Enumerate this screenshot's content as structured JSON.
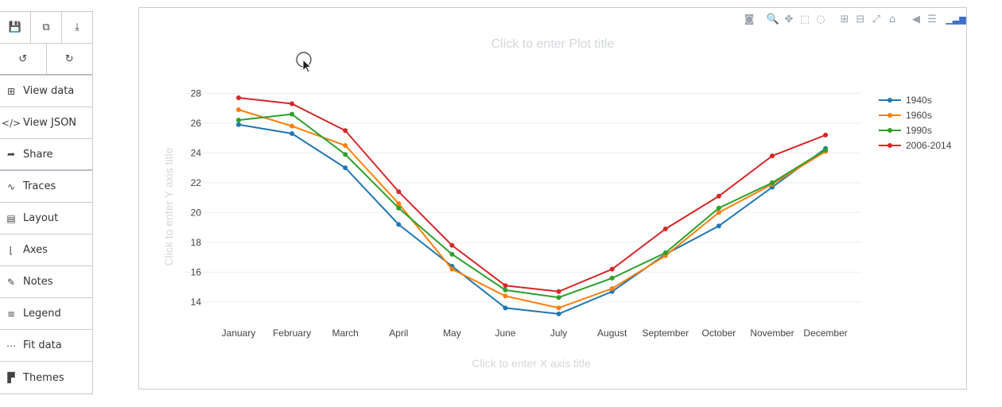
{
  "toolbar": {
    "row1": [
      {
        "name": "save-icon",
        "glyph": "💾"
      },
      {
        "name": "duplicate-icon",
        "glyph": "⧉"
      },
      {
        "name": "download-icon",
        "glyph": "⤓"
      }
    ],
    "row2": [
      {
        "name": "undo-icon",
        "glyph": "↺"
      },
      {
        "name": "redo-icon",
        "glyph": "↻"
      }
    ]
  },
  "sidebar": {
    "items": [
      {
        "label": "View data",
        "icon": "grid-icon",
        "glyph": "⊞"
      },
      {
        "label": "View JSON",
        "icon": "code-icon",
        "glyph": "</>"
      },
      {
        "label": "Share",
        "icon": "share-icon",
        "glyph": "➦"
      },
      {
        "label": "Traces",
        "icon": "traces-icon",
        "glyph": "∿"
      },
      {
        "label": "Layout",
        "icon": "layout-icon",
        "glyph": "▤"
      },
      {
        "label": "Axes",
        "icon": "axes-icon",
        "glyph": "⌊"
      },
      {
        "label": "Notes",
        "icon": "pencil-icon",
        "glyph": "✎"
      },
      {
        "label": "Legend",
        "icon": "legend-icon",
        "glyph": "≡"
      },
      {
        "label": "Fit data",
        "icon": "fit-data-icon",
        "glyph": "⋯"
      },
      {
        "label": "Themes",
        "icon": "paint-roller-icon",
        "glyph": "▛"
      }
    ]
  },
  "modebar": [
    {
      "name": "camera-icon",
      "glyph": "◙"
    },
    {
      "name": "zoom-icon",
      "glyph": "🔍"
    },
    {
      "name": "pan-icon",
      "glyph": "✥"
    },
    {
      "name": "box-select-icon",
      "glyph": "⬚"
    },
    {
      "name": "lasso-select-icon",
      "glyph": "◌"
    },
    {
      "name": "zoom-in-icon",
      "glyph": "⊞"
    },
    {
      "name": "zoom-out-icon",
      "glyph": "⊟"
    },
    {
      "name": "autoscale-icon",
      "glyph": "⤢"
    },
    {
      "name": "reset-axes-icon",
      "glyph": "⌂"
    },
    {
      "name": "hover-closest-icon",
      "glyph": "◀"
    },
    {
      "name": "hover-compare-icon",
      "glyph": "☰"
    },
    {
      "name": "plotly-logo-icon",
      "glyph": "▁▃▆"
    }
  ],
  "chart_data": {
    "type": "line",
    "title": "Click to enter Plot title",
    "xlabel": "Click to enter X axis title",
    "ylabel": "Click to enter Y axis title",
    "categories": [
      "January",
      "February",
      "March",
      "April",
      "May",
      "June",
      "July",
      "August",
      "September",
      "October",
      "November",
      "December"
    ],
    "ylim": [
      12.5,
      28.5
    ],
    "yticks": [
      14,
      16,
      18,
      20,
      22,
      24,
      26,
      28
    ],
    "grid": true,
    "legend_position": "top-right",
    "series": [
      {
        "name": "1940s",
        "color": "#1f77b4",
        "values": [
          25.9,
          25.3,
          23.0,
          19.2,
          16.4,
          13.6,
          13.2,
          14.7,
          17.2,
          19.1,
          21.7,
          24.3
        ]
      },
      {
        "name": "1960s",
        "color": "#ff7f0e",
        "values": [
          26.9,
          25.8,
          24.5,
          20.6,
          16.2,
          14.4,
          13.6,
          14.9,
          17.1,
          20.0,
          21.9,
          24.1
        ]
      },
      {
        "name": "1990s",
        "color": "#2ca02c",
        "values": [
          26.2,
          26.6,
          23.9,
          20.3,
          17.2,
          14.8,
          14.3,
          15.6,
          17.3,
          20.3,
          22.0,
          24.2
        ]
      },
      {
        "name": "2006-2014",
        "color": "#d62728",
        "values": [
          27.7,
          27.3,
          25.5,
          21.4,
          17.8,
          15.1,
          14.7,
          16.2,
          18.9,
          21.1,
          23.8,
          25.2
        ]
      }
    ]
  }
}
